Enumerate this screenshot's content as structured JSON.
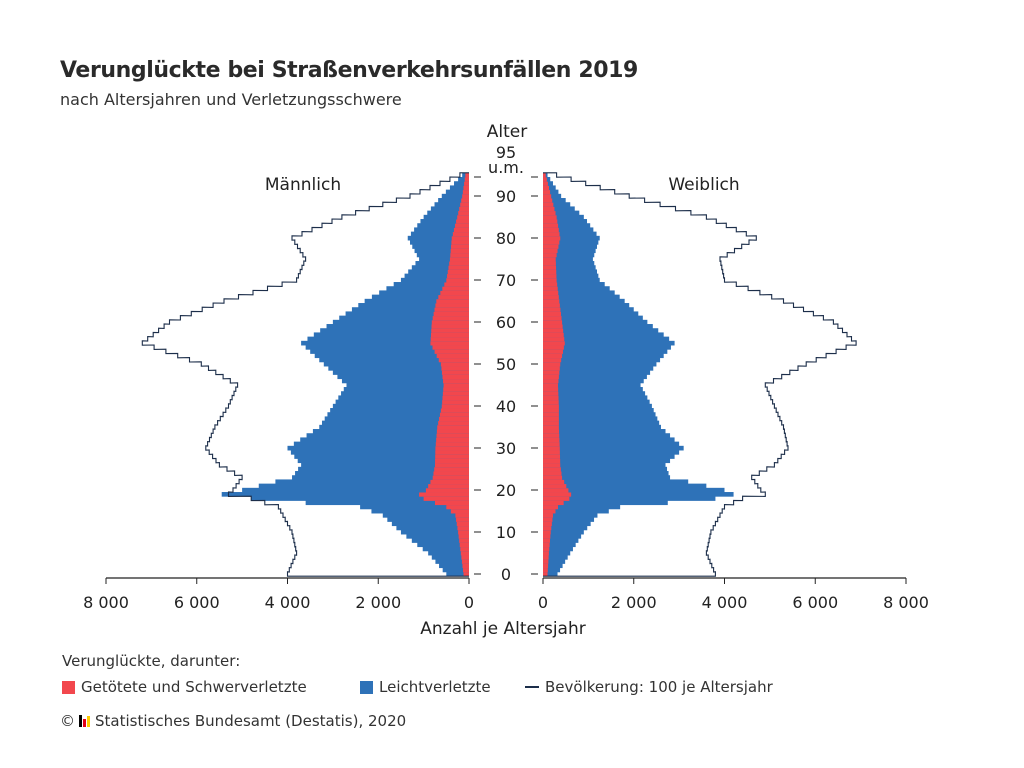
{
  "title": "Verunglückte bei Straßenverkehrsunfällen 2019",
  "subtitle": "nach Altersjahren und Verletzungsschwere",
  "legend": {
    "title": "Verunglückte, darunter:",
    "items": [
      {
        "label": "Getötete und Schwerverletzte",
        "color": "#f2474d"
      },
      {
        "label": "Leichtverletzte",
        "color": "#2e72b8"
      },
      {
        "label": "Bevölkerung: 100 je Altersjahr",
        "color": "#1c2e4a"
      }
    ]
  },
  "source": {
    "copyright": "©",
    "text": "Statistisches Bundesamt (Destatis), 2020",
    "logo_colors": [
      "#000000",
      "#e2001a",
      "#ffcc00"
    ]
  },
  "chart_data": {
    "type": "bar",
    "orientation": "horizontal-pyramid",
    "age_label": "Alter",
    "age_ticks": [
      "0",
      "10",
      "20",
      "30",
      "40",
      "50",
      "60",
      "70",
      "80",
      "90",
      "95 u.m."
    ],
    "side_labels": {
      "left": "Männlich",
      "right": "Weiblich"
    },
    "xlabel": "Anzahl je Altersjahr",
    "x_ticks": [
      "8 000",
      "6 000",
      "4 000",
      "2 000",
      "0"
    ],
    "x_ticks_right": [
      "0",
      "2 000",
      "4 000",
      "6 000",
      "8 000"
    ],
    "xlim": [
      0,
      8000
    ],
    "ylim": [
      0,
      95
    ],
    "colors": {
      "severe": "#f2474d",
      "light": "#2e72b8",
      "population": "#1c2e4a"
    },
    "stacking": "Getötete und Schwerverletzte innen, Leichtverletzte außen; Bevölkerung als Linie",
    "male": {
      "knots": {
        "age": [
          0,
          5,
          10,
          14,
          16,
          18,
          19,
          20,
          23,
          26,
          30,
          35,
          40,
          45,
          50,
          55,
          60,
          65,
          70,
          75,
          80,
          85,
          90,
          95
        ],
        "severe": [
          120,
          180,
          240,
          300,
          500,
          1000,
          1100,
          950,
          800,
          750,
          740,
          700,
          600,
          560,
          620,
          850,
          820,
          720,
          500,
          420,
          380,
          260,
          150,
          80
        ],
        "total": [
          500,
          900,
          1500,
          1900,
          2400,
          4800,
          5450,
          5000,
          3900,
          3700,
          4000,
          3300,
          3000,
          2700,
          3200,
          3700,
          3000,
          2300,
          1500,
          1100,
          1350,
          1000,
          600,
          150
        ],
        "population": [
          4000,
          3800,
          3900,
          4100,
          4200,
          4800,
          5300,
          5200,
          5000,
          5500,
          5800,
          5600,
          5300,
          5100,
          5900,
          7200,
          6600,
          5400,
          3800,
          3600,
          3900,
          2800,
          1300,
          200
        ]
      }
    },
    "female": {
      "knots": {
        "age": [
          0,
          5,
          10,
          14,
          16,
          18,
          19,
          20,
          23,
          26,
          30,
          35,
          40,
          45,
          50,
          55,
          60,
          65,
          70,
          75,
          80,
          85,
          90,
          95
        ],
        "severe": [
          100,
          130,
          170,
          220,
          330,
          580,
          620,
          560,
          420,
          380,
          370,
          350,
          350,
          330,
          380,
          480,
          420,
          360,
          300,
          280,
          380,
          300,
          180,
          60
        ],
        "total": [
          320,
          600,
          900,
          1200,
          1700,
          3800,
          4200,
          4000,
          2800,
          2700,
          3100,
          2600,
          2400,
          2150,
          2500,
          2900,
          2300,
          1800,
          1250,
          1100,
          1250,
          900,
          400,
          100
        ],
        "population": [
          3800,
          3600,
          3700,
          3900,
          4000,
          4400,
          4900,
          4800,
          4600,
          5100,
          5400,
          5300,
          5100,
          4900,
          5800,
          6900,
          6400,
          5300,
          4000,
          3900,
          4700,
          3600,
          1900,
          300
        ]
      }
    }
  }
}
